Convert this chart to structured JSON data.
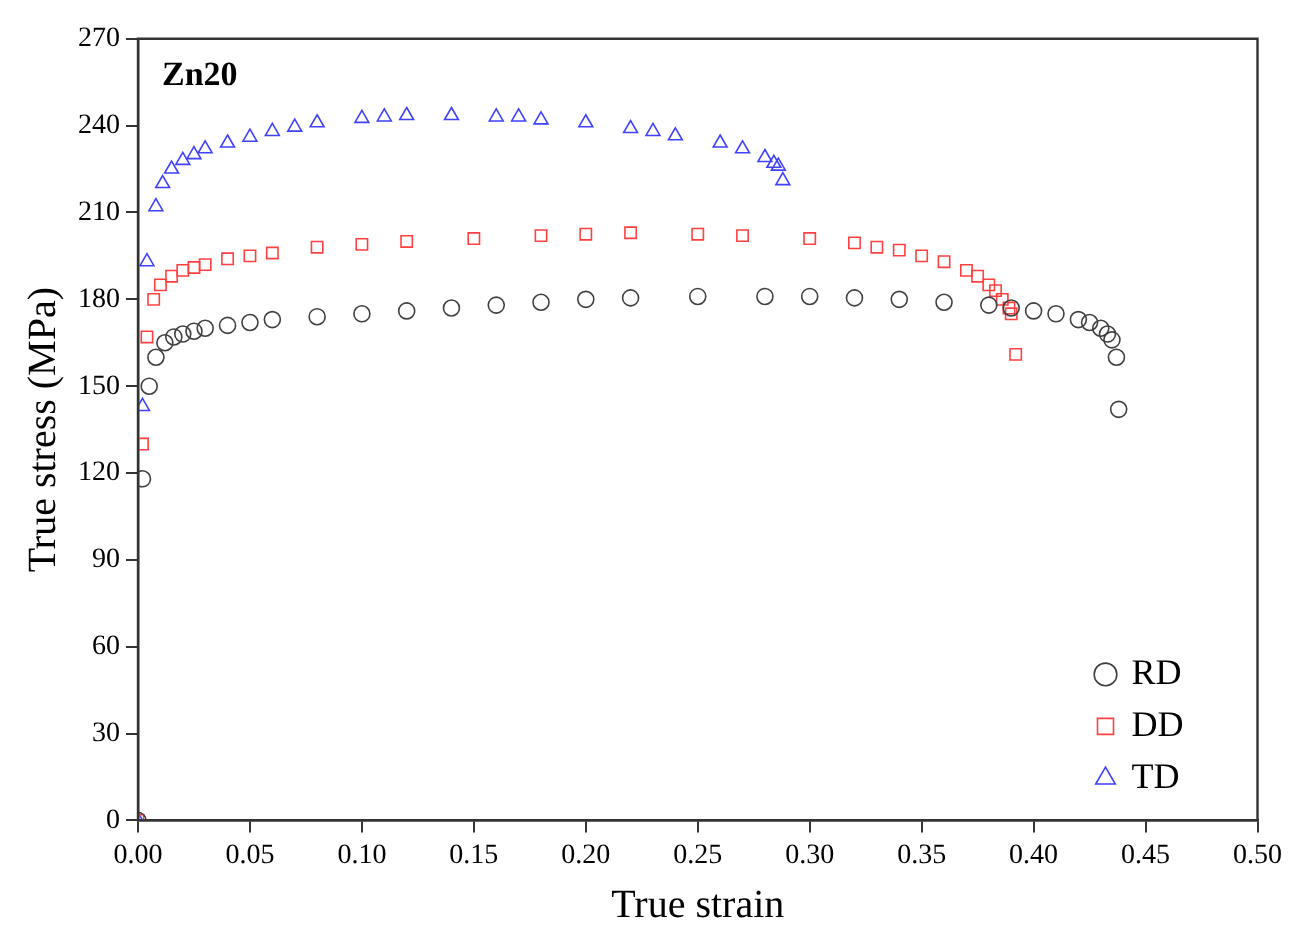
{
  "chart_data": {
    "type": "scatter",
    "xlabel": "True strain",
    "ylabel": "True stress (MPa)",
    "annotations": [
      "Zn20"
    ],
    "xlim": [
      0,
      0.5
    ],
    "xticks": [
      {
        "value": 0,
        "label": "0.00"
      },
      {
        "value": 0.05,
        "label": "0.05"
      },
      {
        "value": 0.1,
        "label": "0.10"
      },
      {
        "value": 0.15,
        "label": "0.15"
      },
      {
        "value": 0.2,
        "label": "0.20"
      },
      {
        "value": 0.25,
        "label": "0.25"
      },
      {
        "value": 0.3,
        "label": "0.30"
      },
      {
        "value": 0.35,
        "label": "0.35"
      },
      {
        "value": 0.4,
        "label": "0.40"
      },
      {
        "value": 0.45,
        "label": "0.45"
      },
      {
        "value": 0.5,
        "label": "0.50"
      }
    ],
    "ylim": [
      0,
      270
    ],
    "yticks": [
      0,
      30,
      60,
      90,
      120,
      150,
      180,
      210,
      240,
      270
    ],
    "grid": false,
    "legend": "bottom right",
    "series": [
      {
        "name": "RD",
        "color": "#404040",
        "marker": "circle",
        "x": [
          0,
          0.002,
          0.005,
          0.008,
          0.012,
          0.016,
          0.02,
          0.025,
          0.03,
          0.04,
          0.05,
          0.06,
          0.08,
          0.1,
          0.12,
          0.14,
          0.16,
          0.18,
          0.2,
          0.22,
          0.25,
          0.28,
          0.3,
          0.32,
          0.34,
          0.36,
          0.38,
          0.39,
          0.4,
          0.41,
          0.42,
          0.425,
          0.43,
          0.433,
          0.435,
          0.437,
          0.438
        ],
        "values": [
          0,
          118,
          150,
          160,
          165,
          167,
          168,
          169,
          170,
          171,
          172,
          173,
          174,
          175,
          176,
          177,
          178,
          179,
          180,
          180.5,
          181,
          181,
          181,
          180.5,
          180,
          179,
          178,
          177,
          176,
          175,
          173,
          172,
          170,
          168,
          166,
          160,
          142
        ]
      },
      {
        "name": "DD",
        "color": "#ff4040",
        "marker": "square",
        "x": [
          0,
          0.002,
          0.004,
          0.007,
          0.01,
          0.015,
          0.02,
          0.025,
          0.03,
          0.04,
          0.05,
          0.06,
          0.08,
          0.1,
          0.12,
          0.15,
          0.18,
          0.2,
          0.22,
          0.25,
          0.27,
          0.3,
          0.32,
          0.33,
          0.34,
          0.35,
          0.36,
          0.37,
          0.375,
          0.38,
          0.383,
          0.386,
          0.389,
          0.39,
          0.392
        ],
        "values": [
          0,
          130,
          167,
          180,
          185,
          188,
          190,
          191,
          192,
          194,
          195,
          196,
          198,
          199,
          200,
          201,
          202,
          202.5,
          203,
          202.5,
          202,
          201,
          199.5,
          198,
          197,
          195,
          193,
          190,
          188,
          185,
          183,
          180,
          177,
          175,
          161
        ]
      },
      {
        "name": "TD",
        "color": "#4040ff",
        "marker": "triangle",
        "x": [
          0,
          0.002,
          0.004,
          0.008,
          0.011,
          0.015,
          0.02,
          0.025,
          0.03,
          0.04,
          0.05,
          0.06,
          0.07,
          0.08,
          0.1,
          0.11,
          0.12,
          0.14,
          0.16,
          0.17,
          0.18,
          0.2,
          0.22,
          0.23,
          0.24,
          0.26,
          0.27,
          0.28,
          0.284,
          0.286,
          0.288
        ],
        "values": [
          0,
          143,
          193,
          212,
          220,
          225,
          228,
          230,
          232,
          234,
          236,
          238,
          239.5,
          241,
          242.5,
          243,
          243.5,
          243.5,
          243,
          243,
          242,
          241,
          239,
          238,
          236.5,
          234,
          232,
          229,
          227,
          226,
          221
        ]
      }
    ]
  }
}
